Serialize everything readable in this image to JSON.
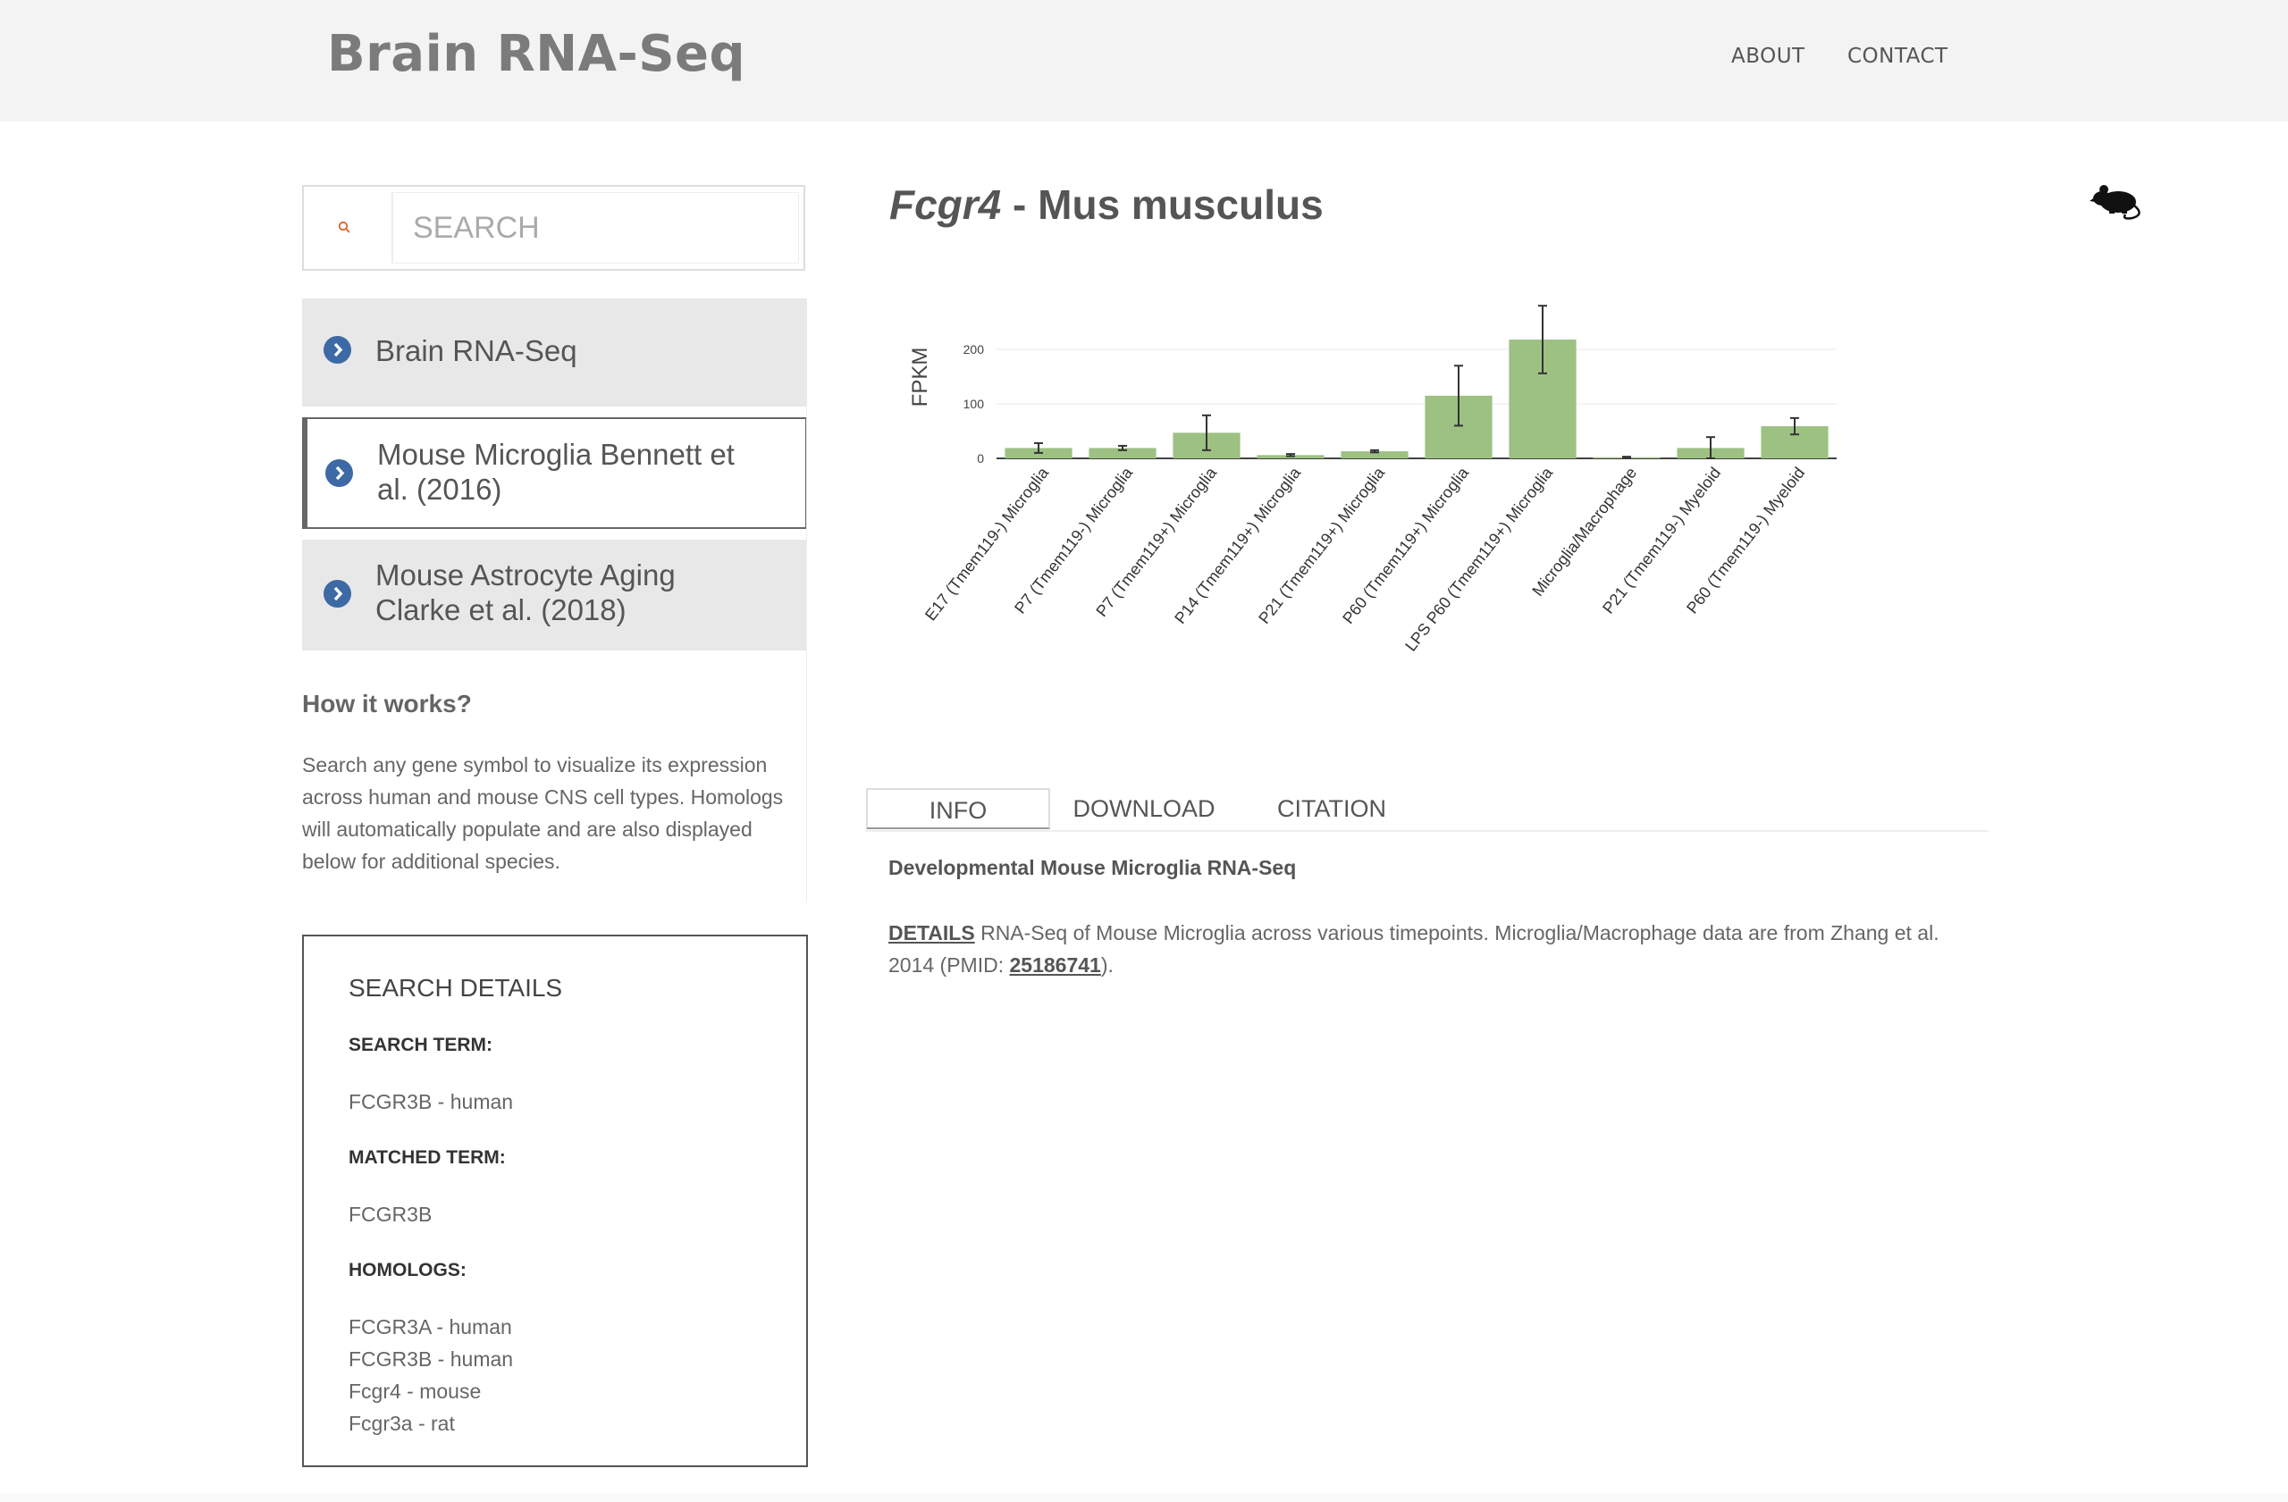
{
  "header": {
    "brand": "Brain RNA-Seq",
    "nav": {
      "about": "ABOUT",
      "contact": "CONTACT"
    }
  },
  "search": {
    "placeholder": "SEARCH",
    "value": ""
  },
  "datasets": [
    {
      "label": "Brain RNA-Seq"
    },
    {
      "label": "Mouse Microglia Bennett et al. (2016)"
    },
    {
      "label": "Mouse Astrocyte Aging Clarke et al. (2018)"
    }
  ],
  "how_it_works": {
    "title": "How it works?",
    "text": "Search any gene symbol to visualize its expression across human and mouse CNS cell types. Homologs will automatically populate and are also displayed below for additional species."
  },
  "search_details": {
    "title": "SEARCH DETAILS",
    "search_term_label": "SEARCH TERM:",
    "search_term": "FCGR3B - human",
    "matched_term_label": "MATCHED TERM:",
    "matched_term": "FCGR3B",
    "homologs_label": "HOMOLOGS:",
    "homologs": [
      "FCGR3A - human",
      "FCGR3B - human",
      "Fcgr4 - mouse",
      "Fcgr3a - rat"
    ]
  },
  "gene": {
    "symbol": "Fcgr4",
    "sep": " - ",
    "species": "Mus musculus"
  },
  "chart_data": {
    "type": "bar",
    "ylabel": "FPKM",
    "xlabel": "",
    "ylim": [
      0,
      250
    ],
    "yticks": [
      0,
      100,
      200
    ],
    "grid": true,
    "categories": [
      "E17 (Tmem119-) Microglia",
      "P7 (Tmem119-) Microglia",
      "P7 (Tmem119+) Microglia",
      "P14 (Tmem119+) Microglia",
      "P21 (Tmem119+) Microglia",
      "P60 (Tmem119+) Microglia",
      "LPS P60 (Tmem119+) Microglia",
      "Microglia/Macrophage",
      "P21 (Tmem119-) Myeloid",
      "P60 (Tmem119-) Myeloid"
    ],
    "values": [
      19,
      19,
      47,
      6,
      13,
      115,
      218,
      2,
      19,
      59
    ],
    "errors": [
      9,
      4,
      32,
      2,
      2,
      55,
      62,
      1,
      20,
      15
    ],
    "bar_color": "#9dc183"
  },
  "tabs": {
    "info": "INFO",
    "download": "DOWNLOAD",
    "citation": "CITATION"
  },
  "info": {
    "title": "Developmental Mouse Microglia RNA-Seq",
    "details_label": "DETAILS",
    "details_text": " RNA-Seq of Mouse Microglia across various timepoints. Microglia/Macrophage data are from Zhang et al. 2014 (PMID: ",
    "pmid": "25186741",
    "details_end": ")."
  }
}
